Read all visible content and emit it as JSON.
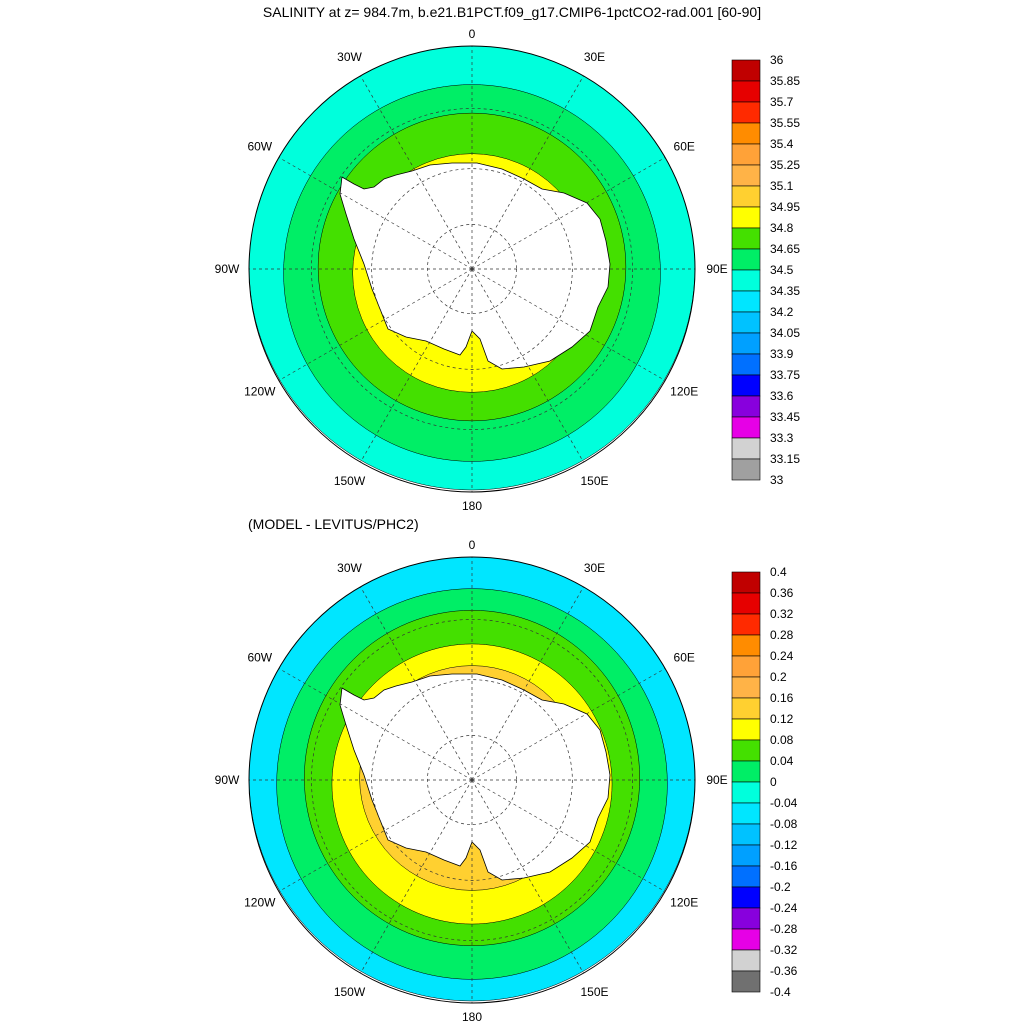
{
  "top_panel": {
    "title": "SALINITY at z= 984.7m, b.e21.B1PCT.f09_g17.CMIP6-1pctCO2-rad.001 [60-90]",
    "lon_labels": [
      "0",
      "30E",
      "60E",
      "90E",
      "120E",
      "150E",
      "180",
      "150W",
      "120W",
      "90W",
      "60W",
      "30W"
    ],
    "zones": [
      {
        "level": 34.35,
        "color": "#00ffdc"
      },
      {
        "level": 34.5,
        "color": "#00ee66"
      },
      {
        "level": 34.65,
        "color": "#44e000"
      },
      {
        "level": 34.8,
        "color": "#ffff00"
      }
    ],
    "colorbar": {
      "labels": [
        "36",
        "35.85",
        "35.7",
        "35.55",
        "35.4",
        "35.25",
        "35.1",
        "34.95",
        "34.8",
        "34.65",
        "34.5",
        "34.35",
        "34.2",
        "34.05",
        "33.9",
        "33.75",
        "33.6",
        "33.45",
        "33.3",
        "33.15",
        "33"
      ],
      "colors": [
        "#c00000",
        "#e60000",
        "#ff2a00",
        "#ff8c00",
        "#ffa238",
        "#ffb347",
        "#ffd030",
        "#ffff00",
        "#44e000",
        "#00ee66",
        "#00ffdc",
        "#00e6ff",
        "#00c2ff",
        "#00a0ff",
        "#0070ff",
        "#0000ff",
        "#8800dd",
        "#e600e6",
        "#d2d2d2",
        "#a0a0a0"
      ]
    }
  },
  "bottom_panel": {
    "title": "(MODEL - LEVITUS/PHC2)",
    "lon_labels": [
      "0",
      "30E",
      "60E",
      "90E",
      "120E",
      "150E",
      "180",
      "150W",
      "120W",
      "90W",
      "60W",
      "30W"
    ],
    "zones": [
      {
        "level": -0.08,
        "color": "#00e6ff"
      },
      {
        "level": 0.0,
        "color": "#00ee66"
      },
      {
        "level": 0.04,
        "color": "#44e000"
      },
      {
        "level": 0.08,
        "color": "#ffff00"
      },
      {
        "level": 0.12,
        "color": "#ffd030"
      }
    ],
    "colorbar": {
      "labels": [
        "0.4",
        "0.36",
        "0.32",
        "0.28",
        "0.24",
        "0.2",
        "0.16",
        "0.12",
        "0.08",
        "0.04",
        "0",
        "-0.04",
        "-0.08",
        "-0.12",
        "-0.16",
        "-0.2",
        "-0.24",
        "-0.28",
        "-0.32",
        "-0.36",
        "-0.4"
      ],
      "colors": [
        "#c00000",
        "#e60000",
        "#ff2a00",
        "#ff8c00",
        "#ffa238",
        "#ffb347",
        "#ffd030",
        "#ffff00",
        "#44e000",
        "#00ee66",
        "#00ffdc",
        "#00e6ff",
        "#00c2ff",
        "#00a0ff",
        "#0070ff",
        "#0000ff",
        "#8800dd",
        "#e600e6",
        "#d2d2d2",
        "#707070"
      ]
    }
  }
}
